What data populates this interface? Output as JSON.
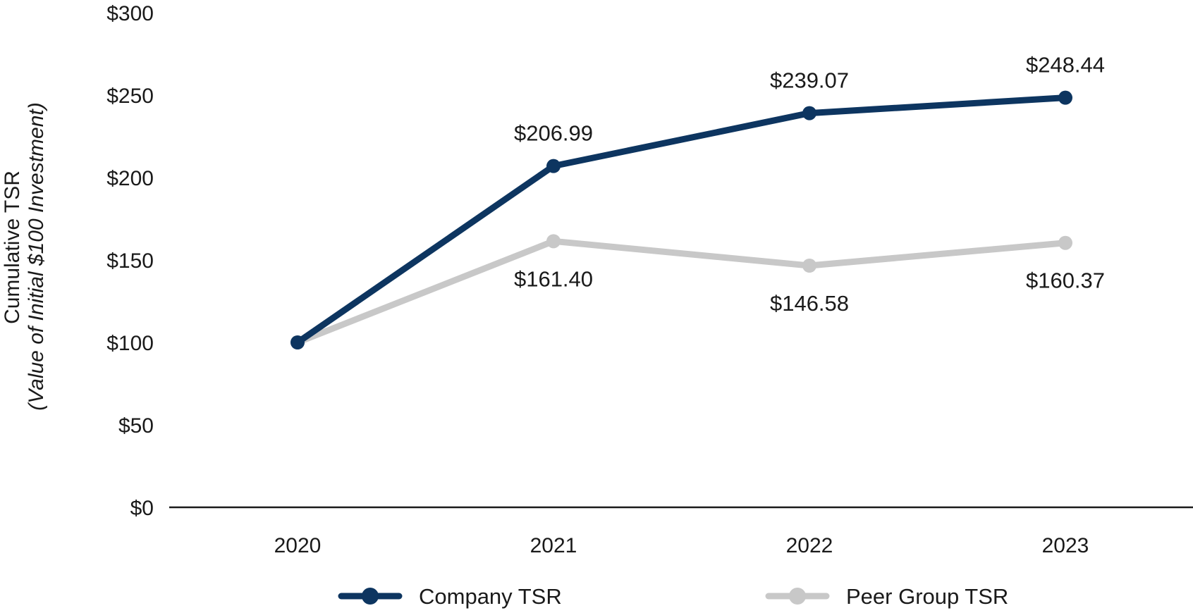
{
  "chart_data": {
    "type": "line",
    "x": [
      "2020",
      "2021",
      "2022",
      "2023"
    ],
    "ylabel": "Cumulative TSR",
    "ylabel_sub": "(Value of Initial $100 Investment)",
    "ylim": [
      0,
      300
    ],
    "yticks": [
      0,
      50,
      100,
      150,
      200,
      250,
      300
    ],
    "ytick_labels": [
      "$0",
      "$50",
      "$100",
      "$150",
      "$200",
      "$250",
      "$300"
    ],
    "grid": false,
    "legend_position": "bottom",
    "series": [
      {
        "name": "Company TSR",
        "values": [
          100,
          206.99,
          239.07,
          248.44
        ],
        "labels": [
          "",
          "$206.99",
          "$239.07",
          "$248.44"
        ],
        "label_position": "above",
        "color": "#0d3560"
      },
      {
        "name": "Peer Group TSR",
        "values": [
          100,
          161.4,
          146.58,
          160.37
        ],
        "labels": [
          "",
          "$161.40",
          "$146.58",
          "$160.37"
        ],
        "label_position": "below",
        "color": "#c8c8c8"
      }
    ]
  }
}
